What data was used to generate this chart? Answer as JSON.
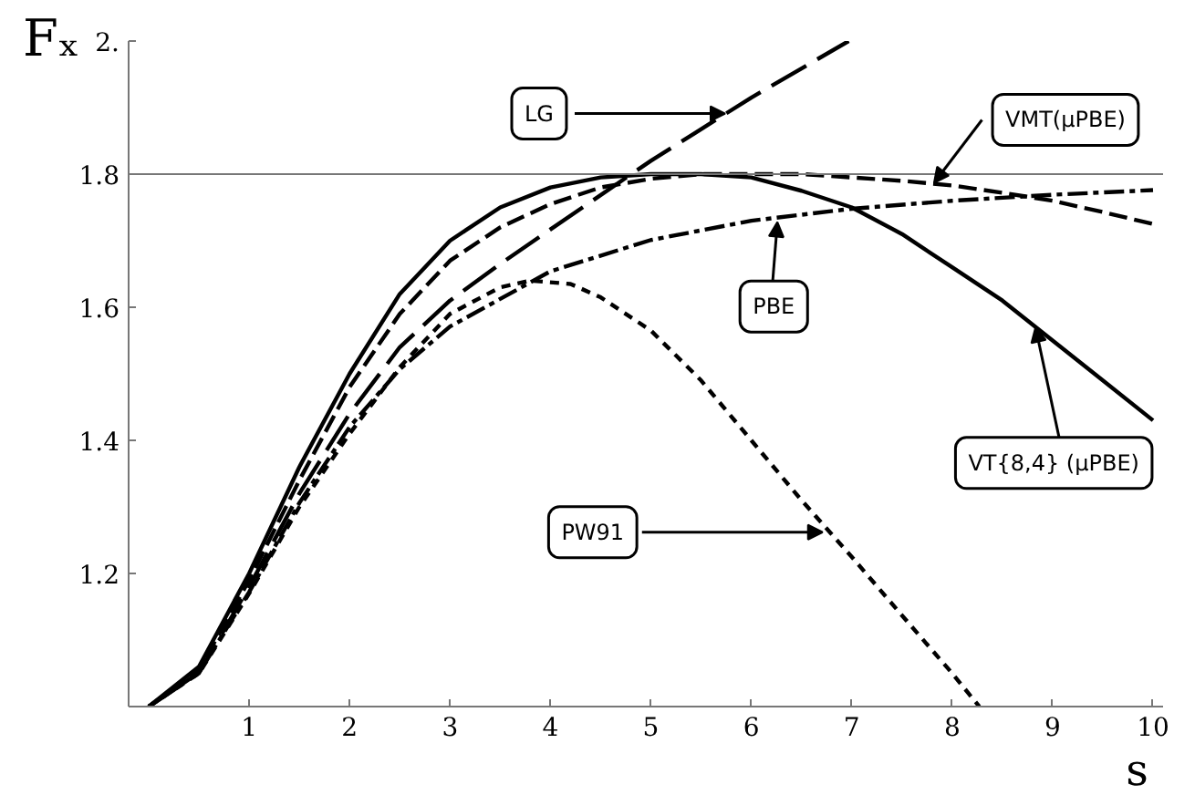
{
  "chart_data": {
    "type": "line",
    "xlabel": "s",
    "ylabel": "Fₓ",
    "xlim": [
      -0.2,
      10.1
    ],
    "ylim": [
      1.0,
      2.0
    ],
    "xticks": [
      1,
      2,
      3,
      4,
      5,
      6,
      7,
      8,
      9,
      10
    ],
    "yticks": [
      {
        "value": 1.0,
        "label": null
      },
      1.2,
      1.4,
      1.6,
      1.8,
      {
        "value": 2.0,
        "label": "2."
      }
    ],
    "grid": false,
    "marker": "none",
    "ref_lines": [
      {
        "axis": "y",
        "value": 1.8,
        "color": "#777777",
        "line_style": "solid"
      }
    ],
    "series": [
      {
        "color": "#000000",
        "line_style": "solid",
        "x": [
          0,
          0.5,
          1,
          1.5,
          2,
          2.5,
          3,
          3.5,
          4,
          4.5,
          5,
          5.5,
          6,
          6.5,
          7,
          7.5,
          8,
          8.5,
          9,
          9.5,
          10
        ],
        "values": [
          1.0,
          1.06,
          1.2,
          1.36,
          1.5,
          1.62,
          1.7,
          1.75,
          1.78,
          1.795,
          1.8,
          1.8,
          1.795,
          1.775,
          1.75,
          1.71,
          1.66,
          1.61,
          1.55,
          1.49,
          1.43
        ]
      },
      {
        "color": "#000000",
        "line_style": "dashed",
        "x": [
          0,
          0.5,
          1,
          1.5,
          2,
          2.5,
          3,
          3.5,
          4,
          4.5,
          5,
          5.5,
          6,
          6.5,
          7,
          7.5,
          8,
          8.5,
          9,
          9.5,
          10
        ],
        "values": [
          1.0,
          1.055,
          1.19,
          1.34,
          1.48,
          1.59,
          1.67,
          1.72,
          1.755,
          1.78,
          1.793,
          1.8,
          1.8,
          1.8,
          1.795,
          1.79,
          1.783,
          1.772,
          1.76,
          1.743,
          1.725
        ]
      },
      {
        "color": "#000000",
        "line_style": "dashdot",
        "x": [
          0,
          0.5,
          1,
          1.5,
          2,
          2.5,
          3,
          4,
          5,
          6,
          7,
          8,
          9,
          10
        ],
        "values": [
          1.0,
          1.051,
          1.172,
          1.306,
          1.42,
          1.507,
          1.571,
          1.654,
          1.701,
          1.73,
          1.748,
          1.76,
          1.769,
          1.776
        ]
      },
      {
        "color": "#000000",
        "line_style": "longdash",
        "x": [
          0,
          0.5,
          1,
          1.5,
          2,
          2.5,
          3,
          3.5,
          4,
          5,
          6,
          6.97
        ],
        "values": [
          1.0,
          1.05,
          1.18,
          1.32,
          1.44,
          1.54,
          1.61,
          1.665,
          1.717,
          1.82,
          1.915,
          2.0
        ]
      },
      {
        "color": "#000000",
        "line_style": "dotted",
        "x": [
          0,
          0.5,
          1,
          1.5,
          2,
          2.5,
          3,
          3.5,
          3.8,
          4.2,
          4.5,
          5,
          5.5,
          6,
          6.5,
          7,
          7.5,
          8,
          8.27
        ],
        "values": [
          1.0,
          1.05,
          1.17,
          1.3,
          1.41,
          1.51,
          1.59,
          1.63,
          1.64,
          1.635,
          1.615,
          1.565,
          1.49,
          1.4,
          1.31,
          1.225,
          1.137,
          1.05,
          1.0
        ]
      }
    ],
    "annotations": [
      {
        "text": "LG",
        "x": 5.74,
        "y": 1.891
      },
      {
        "text": "VMT(μPBE)",
        "x": 7.82,
        "y": 1.787
      },
      {
        "text": "PBE",
        "x": 6.26,
        "y": 1.728
      },
      {
        "text": "PW91",
        "x": 6.71,
        "y": 1.262
      },
      {
        "text": "VT{8,4} (μPBE)",
        "x": 8.83,
        "y": 1.57
      }
    ]
  }
}
